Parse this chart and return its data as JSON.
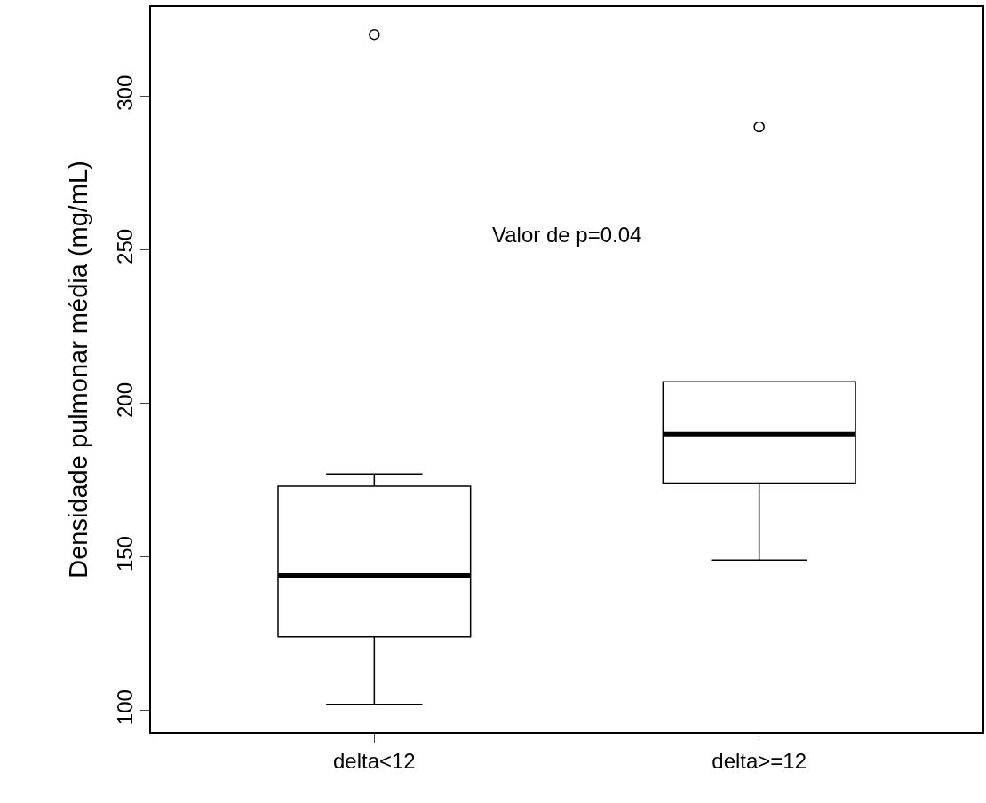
{
  "chart_data": {
    "type": "box",
    "ylabel": "Densidade pulmonar média (mg/mL)",
    "categories": [
      "delta<12",
      "delta>=12"
    ],
    "boxes": [
      {
        "low": 102,
        "q1": 124,
        "median": 144,
        "q3": 173,
        "high": 177,
        "outliers": [
          320
        ]
      },
      {
        "low": 149,
        "q1": 174,
        "median": 190,
        "q3": 207,
        "high": 207,
        "outliers": [
          290
        ]
      }
    ],
    "color": "#000000",
    "ylim": [
      93,
      329
    ],
    "yticks": [
      100,
      150,
      200,
      250,
      300
    ],
    "annotations": [
      "Valor de p=0.04"
    ]
  }
}
